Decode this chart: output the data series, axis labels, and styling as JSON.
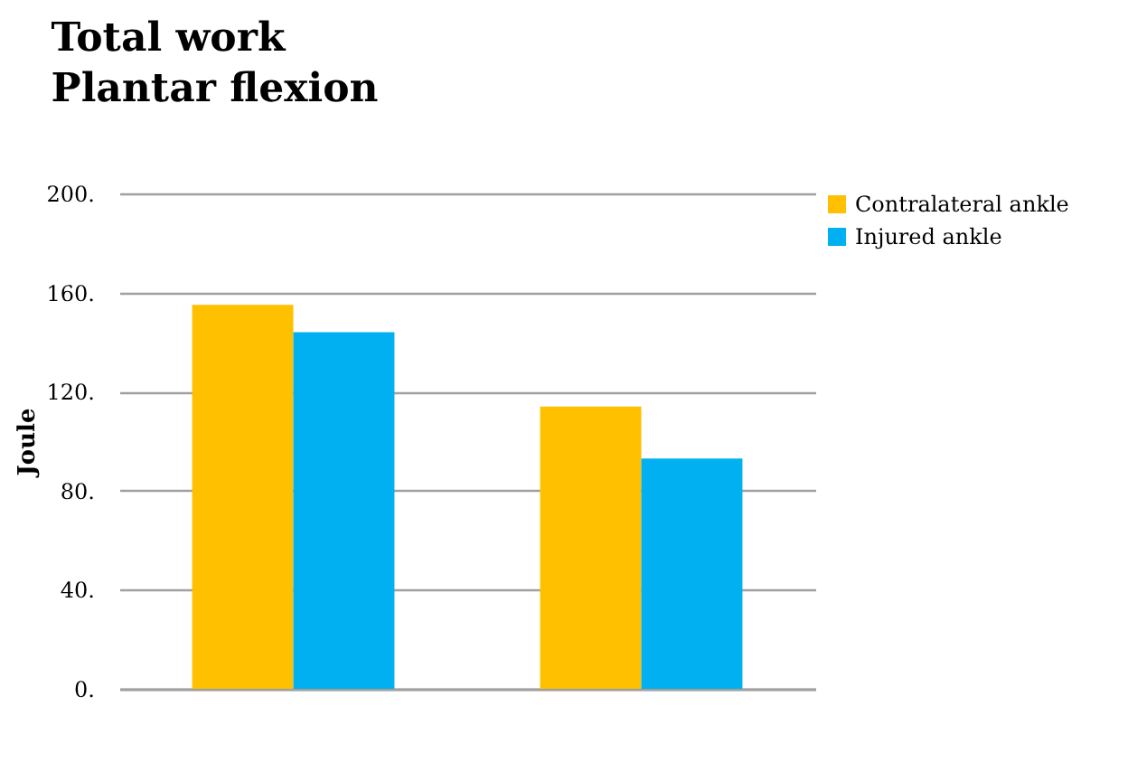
{
  "chart_data": {
    "type": "bar",
    "title": "Total work\nPlantar flexion",
    "ylabel": "Joule",
    "categories": [
      null,
      null
    ],
    "series": [
      {
        "name": "Contralateral ankle",
        "color": "#ffc000",
        "values": [
          155,
          114
        ]
      },
      {
        "name": "Injured ankle",
        "color": "#00b0f0",
        "values": [
          144,
          93
        ]
      }
    ],
    "ylim": [
      0,
      200
    ],
    "yticks": [
      {
        "value": 0,
        "label": "0."
      },
      {
        "value": 40,
        "label": "40."
      },
      {
        "value": 80,
        "label": "80."
      },
      {
        "value": 120,
        "label": "120."
      },
      {
        "value": 160,
        "label": "160."
      },
      {
        "value": 200,
        "label": "200."
      }
    ],
    "grid": "y",
    "legend": "right",
    "tick_labels": "y"
  }
}
